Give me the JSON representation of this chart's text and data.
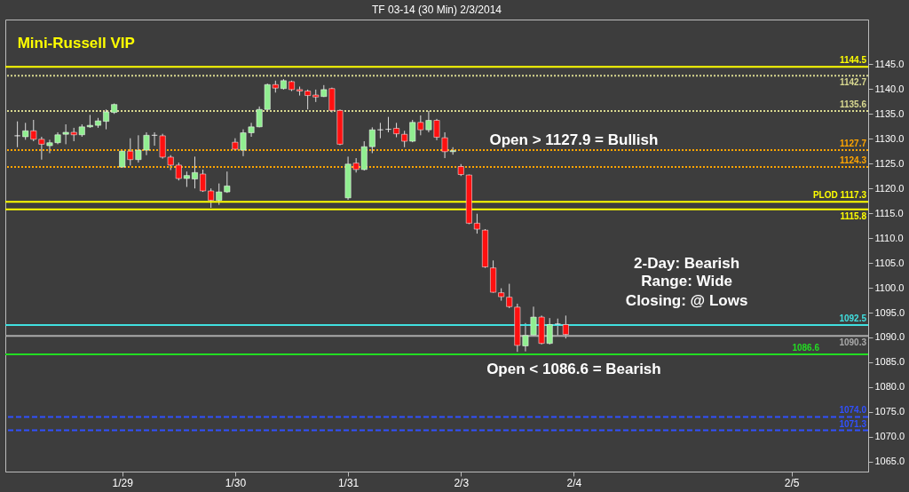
{
  "chart_data": {
    "type": "candlestick",
    "title": "TF 03-14 (30 Min)  2/3/2014",
    "categories": [
      null,
      null,
      null,
      null,
      null,
      null,
      null,
      null,
      null,
      null,
      null,
      null,
      null,
      null,
      "1/29",
      null,
      null,
      null,
      null,
      null,
      null,
      null,
      null,
      null,
      null,
      null,
      null,
      null,
      "1/30",
      null,
      null,
      null,
      null,
      null,
      null,
      null,
      null,
      null,
      null,
      null,
      null,
      null,
      "1/31",
      null,
      null,
      null,
      null,
      null,
      null,
      null,
      null,
      null,
      null,
      null,
      null,
      null,
      "2/3",
      null,
      null,
      null,
      null,
      null,
      null,
      null,
      null,
      null,
      null,
      null,
      null,
      null,
      "2/4",
      null,
      null,
      null,
      null,
      null,
      null,
      null,
      null,
      null,
      null,
      null,
      null,
      null,
      null,
      null,
      null,
      null,
      null,
      null,
      null,
      null,
      null,
      null,
      null,
      null,
      null,
      "2/5",
      null,
      null,
      null,
      null,
      null,
      null,
      null,
      null,
      null
    ],
    "ohlc": [
      null,
      [
        1130.6,
        1133.5,
        1128.3,
        1130.6
      ],
      [
        1130.4,
        1133.2,
        1129.8,
        1131.6
      ],
      [
        1131.6,
        1133.8,
        1129.5,
        1129.9
      ],
      [
        1129.9,
        1130.4,
        1125.8,
        1128.9
      ],
      [
        1128.6,
        1129.8,
        1127.1,
        1129.2
      ],
      [
        1129.2,
        1131.3,
        1128.9,
        1130.8
      ],
      [
        1130.9,
        1132.9,
        1128.9,
        1131.3
      ],
      [
        1131.3,
        1132.2,
        1129.5,
        1130.8
      ],
      [
        1130.8,
        1132.9,
        1130.4,
        1132.4
      ],
      [
        1132.4,
        1134.8,
        1132.2,
        1132.7
      ],
      [
        1132.7,
        1134.2,
        1132.2,
        1133.6
      ],
      [
        1133.5,
        1135.9,
        1131.9,
        1135.4
      ],
      [
        1135.3,
        1137.1,
        1135.0,
        1136.9
      ],
      [
        1124.3,
        1127.7,
        1124.2,
        1127.5
      ],
      [
        1127.5,
        1130.1,
        1124.6,
        1125.8
      ],
      [
        1125.8,
        1130.7,
        1125.2,
        1127.7
      ],
      [
        1127.7,
        1131.3,
        1126.7,
        1130.7
      ],
      [
        1130.7,
        1131.3,
        1128.6,
        1130.7
      ],
      [
        1130.6,
        1131.0,
        1126.0,
        1126.3
      ],
      [
        1126.3,
        1126.7,
        1123.7,
        1124.7
      ],
      [
        1124.7,
        1125.2,
        1121.6,
        1122.0
      ],
      [
        1122.0,
        1123.4,
        1120.3,
        1122.6
      ],
      [
        1121.9,
        1126.4,
        1120.0,
        1123.2
      ],
      [
        1122.9,
        1123.8,
        1119.3,
        1119.5
      ],
      [
        1119.5,
        1120.0,
        1116.1,
        1117.6
      ],
      [
        1117.6,
        1121.0,
        1116.7,
        1119.3
      ],
      [
        1119.3,
        1123.4,
        1119.1,
        1120.5
      ],
      [
        1129.3,
        1130.1,
        1127.7,
        1127.9
      ],
      [
        1127.7,
        1131.9,
        1126.5,
        1131.2
      ],
      [
        1131.2,
        1133.2,
        1130.4,
        1132.4
      ],
      [
        1132.4,
        1136.5,
        1132.3,
        1135.9
      ],
      [
        1135.9,
        1141.1,
        1135.8,
        1140.9
      ],
      [
        1140.9,
        1141.7,
        1139.3,
        1140.2
      ],
      [
        1140.1,
        1142.0,
        1139.9,
        1141.7
      ],
      [
        1141.5,
        1141.7,
        1139.6,
        1139.9
      ],
      [
        1139.9,
        1140.5,
        1138.7,
        1139.6
      ],
      [
        1139.6,
        1139.9,
        1135.9,
        1138.7
      ],
      [
        1138.8,
        1139.9,
        1137.4,
        1138.4
      ],
      [
        1138.5,
        1140.8,
        1138.4,
        1139.9
      ],
      [
        1140.1,
        1140.3,
        1135.3,
        1135.7
      ],
      [
        1135.7,
        1135.9,
        1128.7,
        1128.9
      ],
      [
        1118.1,
        1126.4,
        1117.7,
        1124.9
      ],
      [
        1125.1,
        1126.1,
        1123.2,
        1123.8
      ],
      [
        1123.8,
        1129.5,
        1123.6,
        1128.4
      ],
      [
        1128.4,
        1132.3,
        1127.1,
        1131.8
      ],
      [
        1131.8,
        1133.2,
        1130.1,
        1131.8
      ],
      [
        1131.9,
        1134.4,
        1131.3,
        1131.9
      ],
      [
        1132.1,
        1133.2,
        1130.3,
        1131.0
      ],
      [
        1130.9,
        1131.6,
        1128.3,
        1129.5
      ],
      [
        1129.5,
        1133.8,
        1129.3,
        1133.3
      ],
      [
        1133.3,
        1134.7,
        1130.7,
        1131.8
      ],
      [
        1131.8,
        1135.6,
        1131.3,
        1133.7
      ],
      [
        1133.7,
        1134.0,
        1129.7,
        1130.3
      ],
      [
        1130.2,
        1131.3,
        1126.1,
        1127.4
      ],
      [
        1127.4,
        1128.3,
        1126.8,
        1127.6
      ],
      [
        1124.4,
        1124.9,
        1122.5,
        1122.8
      ],
      [
        1122.7,
        1122.8,
        1112.8,
        1113.0
      ],
      [
        1113.0,
        1114.9,
        1110.9,
        1111.8
      ],
      [
        1111.6,
        1111.8,
        1104.0,
        1104.2
      ],
      [
        1104.0,
        1105.5,
        1099.0,
        1099.1
      ],
      [
        1099.0,
        1099.9,
        1097.4,
        1098.2
      ],
      [
        1098.1,
        1100.8,
        1095.9,
        1096.2
      ],
      [
        1096.1,
        1096.8,
        1087.1,
        1088.4
      ],
      [
        1088.3,
        1092.9,
        1087.2,
        1090.4
      ],
      [
        1090.5,
        1096.2,
        1090.4,
        1094.1
      ],
      [
        1094.1,
        1094.4,
        1088.6,
        1088.8
      ],
      [
        1088.8,
        1093.9,
        1088.6,
        1092.6
      ],
      [
        1092.7,
        1093.8,
        1090.3,
        1092.7
      ],
      [
        1092.6,
        1094.4,
        1089.8,
        1090.6
      ],
      null,
      null,
      null,
      null,
      null,
      null,
      null,
      null,
      null,
      null,
      null,
      null,
      null,
      null,
      null,
      null,
      null,
      null,
      null,
      null,
      null,
      null,
      null,
      null,
      null,
      null,
      null,
      null,
      null,
      null,
      null,
      null,
      null,
      null,
      null,
      null,
      null
    ],
    "ylim": [
      1063,
      1154
    ],
    "yticks": [
      {
        "value": 1065,
        "label": "1065.0"
      },
      {
        "value": 1070,
        "label": "1070.0"
      },
      {
        "value": 1075,
        "label": "1075.0"
      },
      {
        "value": 1080,
        "label": "1080.0"
      },
      {
        "value": 1085,
        "label": "1085.0"
      },
      {
        "value": 1090,
        "label": "1090.0"
      },
      {
        "value": 1095,
        "label": "1095.0"
      },
      {
        "value": 1100,
        "label": "1100.0"
      },
      {
        "value": 1105,
        "label": "1105.0"
      },
      {
        "value": 1110,
        "label": "1110.0"
      },
      {
        "value": 1115,
        "label": "1115.0"
      },
      {
        "value": 1120,
        "label": "1120.0"
      },
      {
        "value": 1125,
        "label": "1125.0"
      },
      {
        "value": 1130,
        "label": "1130.0"
      },
      {
        "value": 1135,
        "label": "1135.0"
      },
      {
        "value": 1140,
        "label": "1140.0"
      },
      {
        "value": 1145,
        "label": "1145.0"
      }
    ],
    "ref_lines": [
      {
        "axis": "y",
        "value": 1144.5,
        "label": "1144.5",
        "color": "#ffff00",
        "line_style": "solid"
      },
      {
        "axis": "y",
        "value": 1142.7,
        "label": "1142.7",
        "color": "#d8d890",
        "line_style": "dotted"
      },
      {
        "axis": "y",
        "value": 1135.6,
        "label": "1135.6",
        "color": "#d8d890",
        "line_style": "dotted"
      },
      {
        "axis": "y",
        "value": 1127.7,
        "label": "1127.7",
        "color": "#ffa500",
        "line_style": "dotted"
      },
      {
        "axis": "y",
        "value": 1124.3,
        "label": "1124.3",
        "color": "#ffa500",
        "line_style": "dotted"
      },
      {
        "axis": "y",
        "value": 1117.3,
        "label": "PLOD 1117.3",
        "color": "#ffff00",
        "line_style": "solid"
      },
      {
        "axis": "y",
        "value": 1115.8,
        "label": "1115.8",
        "color": "#ffff00",
        "line_style": "solid"
      },
      {
        "axis": "y",
        "value": 1092.5,
        "label": "1092.5",
        "color": "#40e0e0",
        "line_style": "solid"
      },
      {
        "axis": "y",
        "value": 1090.3,
        "label": "1090.3",
        "color": "#aaaaaa",
        "line_style": "solid"
      },
      {
        "axis": "y",
        "value": 1086.6,
        "label": "1086.6",
        "color": "#22dd22",
        "line_style": "solid"
      },
      {
        "axis": "y",
        "value": 1074.0,
        "label": "1074.0",
        "color": "#3050ff",
        "line_style": "dashed"
      },
      {
        "axis": "y",
        "value": 1071.3,
        "label": "1071.3",
        "color": "#3050ff",
        "line_style": "dashed"
      }
    ],
    "annotations": [
      "Mini-Russell VIP",
      "Open > 1127.9 = Bullish",
      "2-Day: Bearish",
      "Range: Wide",
      "Closing: @ Lows",
      "Open < 1086.6 = Bearish"
    ],
    "grid": false
  }
}
